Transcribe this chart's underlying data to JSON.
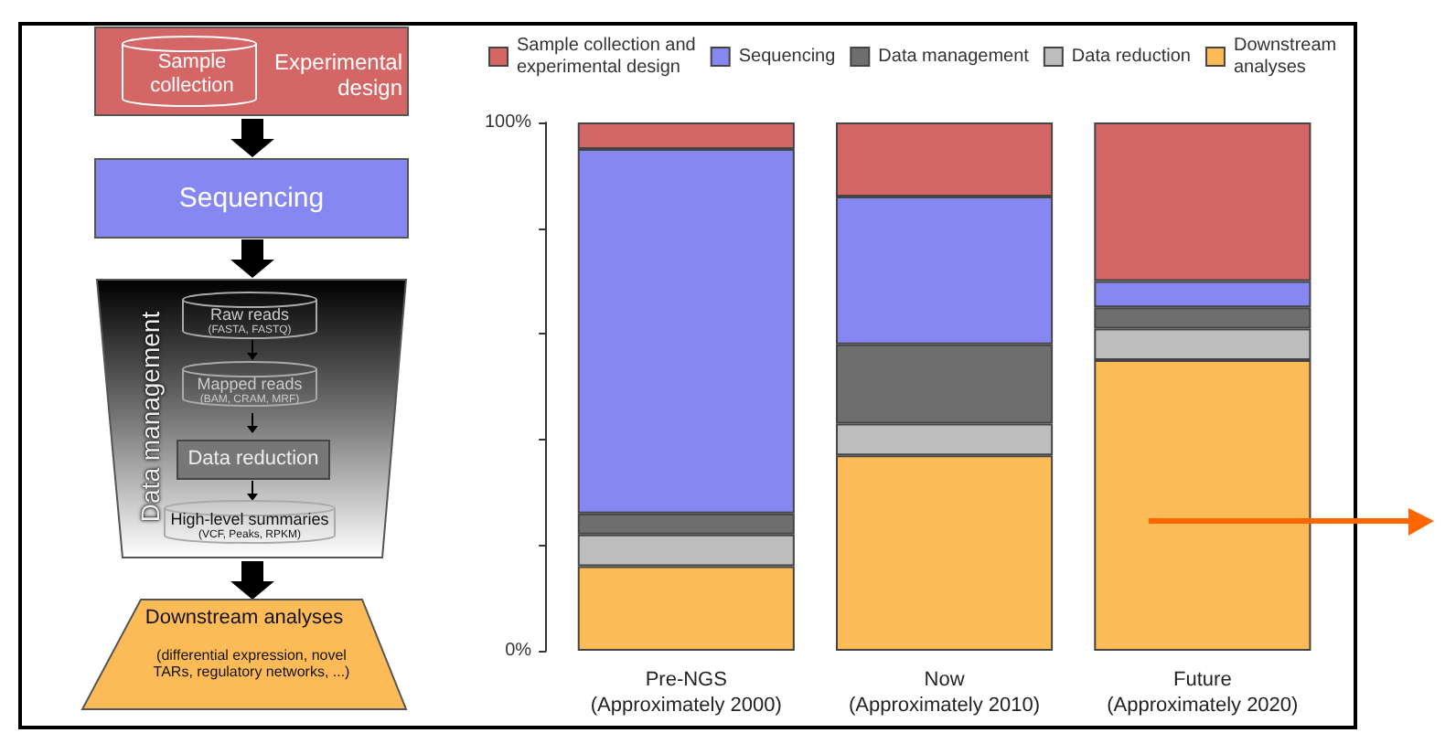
{
  "chart_data": [
    {
      "type": "other",
      "annotations": [
        "Sample collection",
        "Experimental design",
        "Sequencing",
        "Data management",
        "Raw reads",
        "(FASTA, FASTQ)",
        "Mapped reads",
        "(BAM, CRAM, MRF)",
        "Data reduction",
        "High-level summaries",
        "(VCF, Peaks, RPKM)",
        "Downstream analyses",
        "(differential expression, novel TARs, regulatory networks, ...)"
      ]
    },
    {
      "type": "bar",
      "stacked": true,
      "categories": [
        "Pre-NGS\n(Approximately 2000)",
        "Now\n(Approximately 2010)",
        "Future\n(Approximately 2020)"
      ],
      "series": [
        {
          "name": "Downstream\nanalyses",
          "color": "#fdbb58",
          "values": [
            16,
            37,
            55
          ]
        },
        {
          "name": "Data reduction",
          "color": "#bdbdbd",
          "values": [
            6,
            6,
            6
          ]
        },
        {
          "name": "Data management",
          "color": "#6e6e6e",
          "values": [
            4,
            15,
            4
          ]
        },
        {
          "name": "Sequencing",
          "color": "#8687f0",
          "values": [
            69,
            28,
            5
          ]
        },
        {
          "name": "Sample collection and\nexperimental design",
          "color": "#d46666",
          "values": [
            5,
            14,
            30
          ]
        }
      ],
      "ylim": [
        0,
        100
      ],
      "yticks": [
        {
          "value": 0,
          "label": "0%"
        },
        {
          "value": 20,
          "label": null
        },
        {
          "value": 40,
          "label": null
        },
        {
          "value": 60,
          "label": null
        },
        {
          "value": 80,
          "label": null
        },
        {
          "value": 100,
          "label": "100%"
        }
      ],
      "grid": false,
      "legend": "top"
    }
  ]
}
